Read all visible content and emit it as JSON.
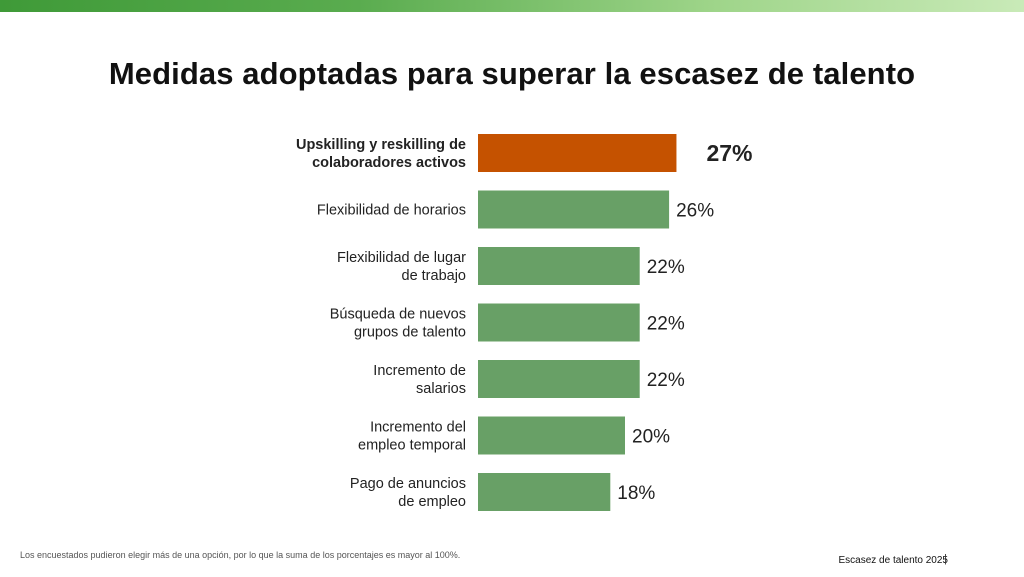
{
  "title": "Medidas adoptadas para superar la escasez de talento",
  "footnote": "Los encuestados pudieron elegir más de una opción, por lo que la suma de los porcentajes es mayor al 100%.",
  "footer": {
    "brand": "Escasez de talento 2025",
    "separator": "|"
  },
  "colors": {
    "highlight": "#c55200",
    "bar": "#68a066",
    "top_band": "#5aac4f"
  },
  "chart_data": {
    "type": "bar",
    "orientation": "horizontal",
    "categories": [
      [
        "Upskilling y reskilling de",
        "colaboradores activos"
      ],
      [
        "Flexibilidad de horarios"
      ],
      [
        "Flexibilidad de lugar",
        "de trabajo"
      ],
      [
        "Búsqueda de nuevos",
        "grupos de talento"
      ],
      [
        "Incremento de",
        "salarios"
      ],
      [
        "Incremento del",
        "empleo temporal"
      ],
      [
        "Pago de anuncios",
        "de empleo"
      ]
    ],
    "values": [
      27,
      26,
      22,
      22,
      22,
      20,
      18
    ],
    "value_labels": [
      "27%",
      "26%",
      "22%",
      "22%",
      "22%",
      "20%",
      "18%"
    ],
    "highlight_index": 0,
    "unit": "%",
    "grid": false,
    "legend": "none"
  }
}
